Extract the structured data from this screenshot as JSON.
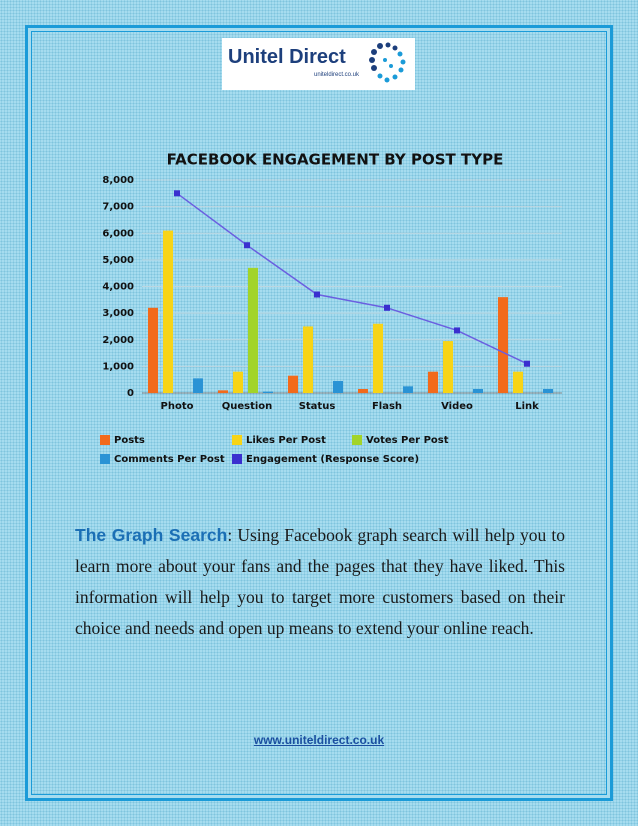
{
  "logo": {
    "name": "Unitel Direct",
    "url": "uniteldirect.co.uk"
  },
  "chart_data": {
    "type": "bar",
    "title": "FACEBOOK ENGAGEMENT BY POST TYPE",
    "categories": [
      "Photo",
      "Question",
      "Status",
      "Flash",
      "Video",
      "Link"
    ],
    "series": [
      {
        "name": "Posts",
        "color": "#f26a1b",
        "values": [
          3200,
          100,
          650,
          150,
          800,
          3600
        ]
      },
      {
        "name": "Likes Per Post",
        "color": "#f7d417",
        "values": [
          6100,
          800,
          2500,
          2600,
          1950,
          800
        ]
      },
      {
        "name": "Votes Per Post",
        "color": "#a2d42a",
        "values": [
          null,
          4700,
          null,
          null,
          null,
          null
        ]
      },
      {
        "name": "Comments Per Post",
        "color": "#2a93d5",
        "values": [
          550,
          50,
          450,
          250,
          150,
          150
        ]
      },
      {
        "name": "Engagement (Response Score)",
        "color": "#3a2fcf",
        "type": "line",
        "values": [
          7500,
          5550,
          3700,
          3200,
          2350,
          1100
        ]
      }
    ],
    "ylim": [
      0,
      8000
    ],
    "yticks": [
      0,
      {
        "value": 1000,
        "label": "1,000"
      },
      {
        "value": 2000,
        "label": "2,000"
      },
      {
        "value": 3000,
        "label": "3,000"
      },
      {
        "value": 4000,
        "label": "4,000"
      },
      {
        "value": 5000,
        "label": "5,000"
      },
      {
        "value": 6000,
        "label": "6,000"
      },
      {
        "value": 7000,
        "label": "7,000"
      },
      {
        "value": 8000,
        "label": "8,000"
      }
    ],
    "grid": true
  },
  "body": {
    "heading": "The Graph Search",
    "text": ": Using Facebook graph search will help you to learn more about your fans and the pages that they have liked. This information will help you to target more customers based on their choice and needs and open up means to extend your online reach."
  },
  "footer": {
    "link": "www.uniteldirect.co.uk"
  }
}
